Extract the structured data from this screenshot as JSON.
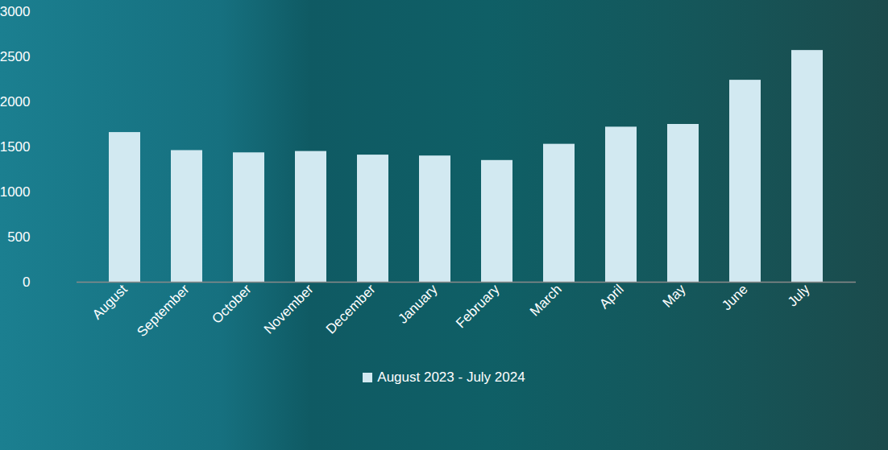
{
  "chart_data": {
    "type": "bar",
    "categories": [
      "August",
      "September",
      "October",
      "November",
      "December",
      "January",
      "February",
      "March",
      "April",
      "May",
      "June",
      "July"
    ],
    "series": [
      {
        "name": "August 2023 - July 2024",
        "color": "#d2e9f1",
        "values": [
          1660,
          1460,
          1435,
          1450,
          1410,
          1400,
          1350,
          1530,
          1720,
          1750,
          2240,
          2570
        ]
      }
    ],
    "ylim": [
      0,
      3000
    ],
    "yticks": [
      0,
      500,
      1000,
      1500,
      2000,
      2500,
      3000
    ],
    "grid": false,
    "legend": "bottom"
  }
}
